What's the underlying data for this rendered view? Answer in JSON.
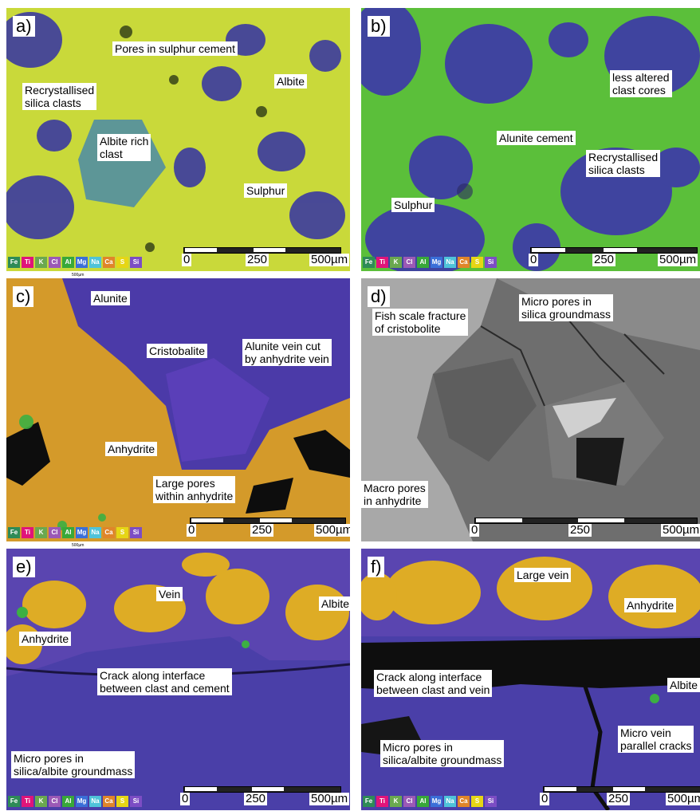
{
  "legend": [
    {
      "sym": "Fe",
      "color": "#2e8b57"
    },
    {
      "sym": "Ti",
      "color": "#e0147a"
    },
    {
      "sym": "K",
      "color": "#6aa84f"
    },
    {
      "sym": "Cl",
      "color": "#9b59b6"
    },
    {
      "sym": "Al",
      "color": "#38a839"
    },
    {
      "sym": "Mg",
      "color": "#3a6fd8"
    },
    {
      "sym": "Na",
      "color": "#4fc3d9"
    },
    {
      "sym": "Ca",
      "color": "#e0852a"
    },
    {
      "sym": "S",
      "color": "#e6d615"
    },
    {
      "sym": "Si",
      "color": "#7c4dc4"
    }
  ],
  "scale": {
    "t0": "0",
    "t1": "250",
    "t2": "500µm",
    "tiny": "500µm"
  },
  "panels": {
    "a": {
      "label": "a)",
      "ann": [
        "Pores in sulphur cement",
        "Albite",
        "Recrystallised\nsilica clasts",
        "Albite rich\nclast",
        "Sulphur"
      ]
    },
    "b": {
      "label": "b)",
      "ann": [
        "less altered\nclast cores",
        "Alunite cement",
        "Recrystallised\nsilica clasts",
        "Sulphur"
      ]
    },
    "c": {
      "label": "c)",
      "ann": [
        "Alunite",
        "Cristobalite",
        "Alunite vein cut\nby anhydrite vein",
        "Anhydrite",
        "Large pores\nwithin anhydrite"
      ]
    },
    "d": {
      "label": "d)",
      "ann": [
        "Fish scale fracture\nof cristobolite",
        "Micro pores in\nsilica groundmass",
        "Macro pores\nin anhydrite"
      ]
    },
    "e": {
      "label": "e)",
      "ann": [
        "Vein",
        "Albite",
        "Anhydrite",
        "Crack along interface\nbetween clast and cement",
        "Micro pores in\nsilica/albite groundmass"
      ]
    },
    "f": {
      "label": "f)",
      "ann": [
        "Large vein",
        "Anhydrite",
        "Crack along interface\nbetween clast and vein",
        "Albite",
        "Micro vein\nparallel cracks",
        "Micro pores in\nsilica/albite groundmass"
      ]
    }
  }
}
